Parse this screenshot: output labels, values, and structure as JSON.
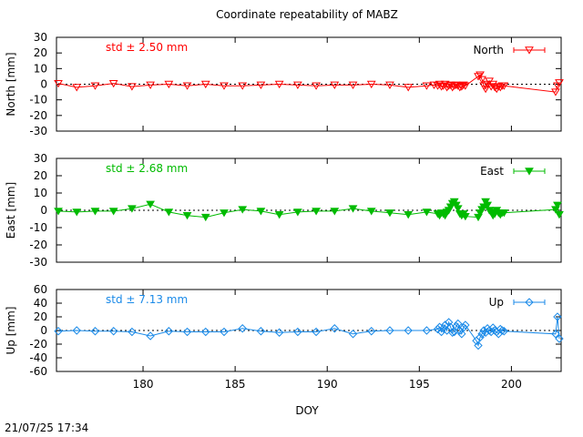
{
  "title": "Coordinate repeatability of MABZ",
  "timestamp": "21/07/25 17:34",
  "xlabel": "DOY",
  "x_ticks": [
    180,
    185,
    190,
    195,
    200
  ],
  "colors": {
    "north": "#ff0000",
    "east": "#00bb00",
    "up": "#1a8ae8"
  },
  "chart_data": [
    {
      "type": "line",
      "panel": "north",
      "ylabel": "North [mm]",
      "ylim": [
        -30,
        30
      ],
      "yticks": [
        30,
        20,
        10,
        0,
        -10,
        -20,
        -30
      ],
      "xlim": [
        175.3,
        202.7
      ],
      "std_label": "std ± 2.50 mm",
      "legend": "top-right",
      "marker": "triangle-down-open",
      "series": [
        {
          "name": "North",
          "x": [
            175.4,
            176.4,
            177.4,
            178.4,
            179.4,
            180.4,
            181.4,
            182.4,
            183.4,
            184.4,
            185.4,
            186.4,
            187.4,
            188.4,
            189.4,
            190.4,
            191.4,
            192.4,
            193.4,
            194.4,
            195.4,
            195.8,
            196.0,
            196.1,
            196.2,
            196.3,
            196.4,
            196.5,
            196.6,
            196.7,
            196.8,
            196.9,
            197.0,
            197.1,
            197.2,
            197.3,
            197.4,
            197.5,
            198.2,
            198.3,
            198.4,
            198.5,
            198.6,
            198.7,
            198.8,
            198.9,
            199.0,
            199.1,
            199.2,
            199.3,
            199.4,
            199.5,
            199.6,
            202.4,
            202.5,
            202.6
          ],
          "y": [
            0.5,
            -2,
            -1,
            0.5,
            -1.5,
            -0.5,
            0,
            -1,
            0,
            -1,
            -1,
            -0.5,
            0,
            -0.5,
            -1,
            -0.5,
            -0.5,
            0,
            -0.5,
            -2,
            -1,
            -0.5,
            -1,
            0,
            -1.5,
            -1,
            0,
            -2,
            -1,
            -0.5,
            -2,
            -1,
            -0.5,
            -1,
            -2,
            -1.5,
            -0.5,
            -1,
            5,
            6,
            3,
            -1,
            -3,
            0,
            2,
            -1.5,
            0,
            -2,
            -3,
            -1.5,
            -2,
            -1,
            -1,
            -5,
            -1,
            1
          ]
        }
      ]
    },
    {
      "type": "line",
      "panel": "east",
      "ylabel": "East [mm]",
      "ylim": [
        -30,
        30
      ],
      "yticks": [
        30,
        20,
        10,
        0,
        -10,
        -20,
        -30
      ],
      "xlim": [
        175.3,
        202.7
      ],
      "std_label": "std ± 2.68 mm",
      "legend": "top-right",
      "marker": "triangle-down-filled",
      "series": [
        {
          "name": "East",
          "x": [
            175.4,
            176.4,
            177.4,
            178.4,
            179.4,
            180.4,
            181.4,
            182.4,
            183.4,
            184.4,
            185.4,
            186.4,
            187.4,
            188.4,
            189.4,
            190.4,
            191.4,
            192.4,
            193.4,
            194.4,
            195.4,
            196.0,
            196.1,
            196.2,
            196.3,
            196.4,
            196.5,
            196.6,
            196.7,
            196.8,
            196.9,
            197.0,
            197.1,
            197.2,
            197.3,
            197.4,
            197.5,
            198.2,
            198.3,
            198.4,
            198.5,
            198.6,
            198.7,
            198.8,
            198.9,
            199.0,
            199.1,
            199.2,
            199.3,
            199.4,
            199.5,
            199.6,
            202.4,
            202.5,
            202.6
          ],
          "y": [
            -0.5,
            -1,
            -0.5,
            -0.5,
            1,
            3.5,
            -1,
            -3,
            -4,
            -1.5,
            0.5,
            -0.5,
            -2.5,
            -1,
            -0.5,
            -0.5,
            1,
            -0.5,
            -1.5,
            -2.5,
            -1,
            -2,
            -3,
            -1.5,
            -2,
            -3,
            -1,
            0,
            2,
            4,
            5,
            3,
            1,
            -2,
            -3,
            -2,
            -3.5,
            -4,
            -1.5,
            0.5,
            2,
            5,
            3,
            0,
            -1,
            -3,
            -2,
            0,
            -1.5,
            -2.5,
            -1.5,
            -1.5,
            0.5,
            3,
            -2.5
          ]
        }
      ]
    },
    {
      "type": "line",
      "panel": "up",
      "ylabel": "Up [mm]",
      "ylim": [
        -60,
        60
      ],
      "yticks": [
        60,
        40,
        20,
        0,
        -20,
        -40,
        -60
      ],
      "xlim": [
        175.3,
        202.7
      ],
      "std_label": "std ± 7.13 mm",
      "legend": "top-right",
      "marker": "diamond-open",
      "series": [
        {
          "name": "Up",
          "x": [
            175.4,
            176.4,
            177.4,
            178.4,
            179.4,
            180.4,
            181.4,
            182.4,
            183.4,
            184.4,
            185.4,
            186.4,
            187.4,
            188.4,
            189.4,
            190.4,
            191.4,
            192.4,
            193.4,
            194.4,
            195.4,
            196.0,
            196.1,
            196.2,
            196.3,
            196.4,
            196.5,
            196.6,
            196.7,
            196.8,
            196.9,
            197.0,
            197.1,
            197.2,
            197.3,
            197.4,
            197.5,
            198.1,
            198.2,
            198.3,
            198.4,
            198.5,
            198.6,
            198.7,
            198.8,
            198.9,
            199.0,
            199.1,
            199.2,
            199.3,
            199.4,
            199.5,
            199.6,
            202.4,
            202.5,
            202.6
          ],
          "y": [
            -1,
            0,
            -1,
            -1,
            -2,
            -8,
            -1,
            -2,
            -2,
            -2,
            3,
            -1,
            -3,
            -2,
            -2,
            3,
            -5,
            -1,
            0,
            0,
            0,
            2,
            5,
            -2,
            3,
            8,
            0,
            12,
            5,
            -3,
            -2,
            6,
            10,
            0,
            -5,
            4,
            8,
            -15,
            -22,
            -10,
            -5,
            0,
            -3,
            3,
            0,
            -2,
            4,
            0,
            -2,
            -5,
            2,
            0,
            -1,
            -5,
            20,
            -12
          ]
        }
      ]
    }
  ]
}
